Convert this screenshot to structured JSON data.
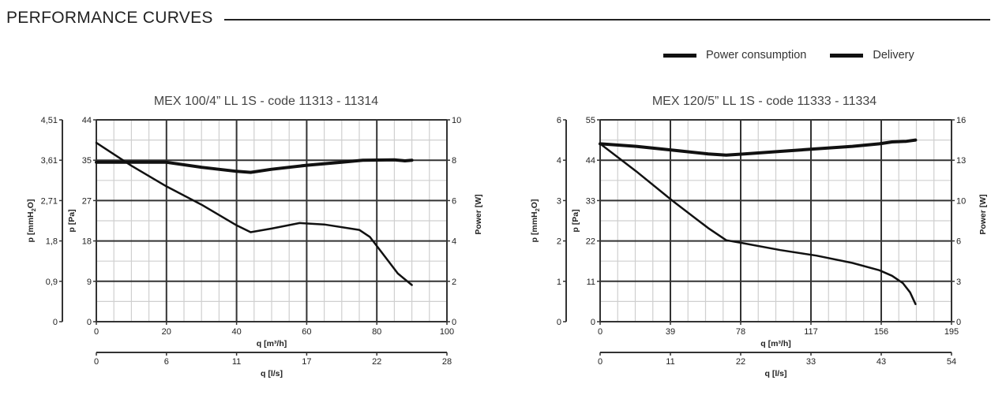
{
  "heading": "PERFORMANCE CURVES",
  "legend": [
    {
      "label": "Power consumption",
      "color": "#111111"
    },
    {
      "label": "Delivery",
      "color": "#111111"
    }
  ],
  "chart_data": [
    {
      "type": "line",
      "title": "MEX 100/4” LL 1S - code 11313 - 11314",
      "grid": true,
      "x_primary": {
        "label": "q [m³/h]",
        "ticks": [
          "0",
          "20",
          "40",
          "60",
          "80",
          "100"
        ],
        "range": [
          0,
          100
        ]
      },
      "x_secondary": {
        "label": "q [l/s]",
        "ticks": [
          "0",
          "6",
          "11",
          "17",
          "22",
          "28"
        ]
      },
      "y_left_outer": {
        "label": "p [mmH2O]",
        "ticks": [
          "0",
          "0,9",
          "1,8",
          "2,71",
          "3,61",
          "4,51"
        ]
      },
      "y_left": {
        "label": "p [Pa]",
        "ticks": [
          "0",
          "9",
          "18",
          "27",
          "35",
          "44"
        ],
        "range": [
          0,
          44
        ]
      },
      "y_right": {
        "label": "Power [W]",
        "ticks": [
          "0",
          "2",
          "4",
          "6",
          "8",
          "10"
        ],
        "range": [
          0,
          10
        ]
      },
      "series": [
        {
          "name": "Power consumption",
          "axis": "right",
          "stroke": 4,
          "x": [
            0,
            10,
            20,
            30,
            40,
            44,
            50,
            60,
            70,
            76,
            85,
            88,
            90
          ],
          "y": [
            7.9,
            7.9,
            7.9,
            7.65,
            7.45,
            7.4,
            7.55,
            7.75,
            7.9,
            8.0,
            8.02,
            7.97,
            8.0
          ]
        },
        {
          "name": "Delivery",
          "axis": "left",
          "stroke": 2.5,
          "x": [
            0,
            10,
            20,
            30,
            40,
            44,
            50,
            58,
            65,
            75,
            78,
            82,
            86,
            90
          ],
          "y": [
            39.0,
            34.0,
            29.5,
            25.5,
            21.0,
            19.5,
            20.3,
            21.5,
            21.2,
            20.0,
            18.5,
            14.5,
            10.5,
            8.0
          ]
        }
      ]
    },
    {
      "type": "line",
      "title": "MEX 120/5” LL 1S - code 11333 - 11334",
      "grid": true,
      "x_primary": {
        "label": "q [m³/h]",
        "ticks": [
          "0",
          "39",
          "78",
          "117",
          "156",
          "195"
        ],
        "range": [
          0,
          195
        ]
      },
      "x_secondary": {
        "label": "q [l/s]",
        "ticks": [
          "0",
          "11",
          "22",
          "33",
          "43",
          "54"
        ]
      },
      "y_left_outer": {
        "label": "p [mmH2O]",
        "ticks": [
          "0",
          "1",
          "2",
          "3",
          "4",
          "6"
        ]
      },
      "y_left": {
        "label": "p [Pa]",
        "ticks": [
          "0",
          "11",
          "22",
          "33",
          "44",
          "55"
        ],
        "range": [
          0,
          55
        ]
      },
      "y_right": {
        "label": "Power [W]",
        "ticks": [
          "0",
          "3",
          "6",
          "10",
          "13",
          "16"
        ],
        "range": [
          0,
          16
        ]
      },
      "series": [
        {
          "name": "Power consumption",
          "axis": "right",
          "stroke": 4,
          "x": [
            0,
            20,
            40,
            60,
            70,
            80,
            100,
            120,
            140,
            155,
            162,
            170,
            175
          ],
          "y": [
            14.1,
            13.9,
            13.6,
            13.3,
            13.2,
            13.3,
            13.5,
            13.7,
            13.9,
            14.1,
            14.25,
            14.3,
            14.4
          ]
        },
        {
          "name": "Delivery",
          "axis": "left",
          "stroke": 2.5,
          "x": [
            0,
            20,
            40,
            60,
            70,
            78,
            100,
            120,
            140,
            155,
            162,
            168,
            172,
            175
          ],
          "y": [
            48.5,
            41.0,
            33.0,
            25.5,
            22.2,
            21.5,
            19.5,
            18.0,
            16.0,
            14.0,
            12.5,
            10.5,
            8.0,
            4.8
          ]
        }
      ]
    }
  ]
}
